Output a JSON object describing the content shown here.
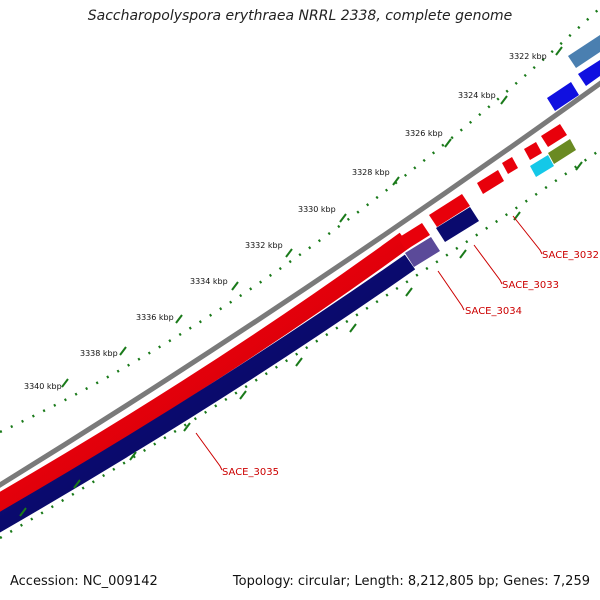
{
  "title": "Saccharopolyspora erythraea NRRL 2338, complete genome",
  "footer": {
    "accession": "Accession: NC_009142",
    "stats": "Topology: circular; Length: 8,212,805 bp; Genes: 7,259"
  },
  "ticks": [
    {
      "label": "3322 kbp"
    },
    {
      "label": "3324 kbp"
    },
    {
      "label": "3326 kbp"
    },
    {
      "label": "3328 kbp"
    },
    {
      "label": "3330 kbp"
    },
    {
      "label": "3332 kbp"
    },
    {
      "label": "3334 kbp"
    },
    {
      "label": "3336 kbp"
    },
    {
      "label": "3338 kbp"
    },
    {
      "label": "3340 kbp"
    }
  ],
  "genes": [
    {
      "label": "SACE_3032"
    },
    {
      "label": "SACE_3033"
    },
    {
      "label": "SACE_3034"
    },
    {
      "label": "SACE_3035"
    }
  ],
  "colors": {
    "backbone": "#7a7a7a",
    "forward_cds": "#e8000b",
    "reverse_cds": "#0a0a6e",
    "tick": "#1a7a1a",
    "label": "#cc0000"
  }
}
